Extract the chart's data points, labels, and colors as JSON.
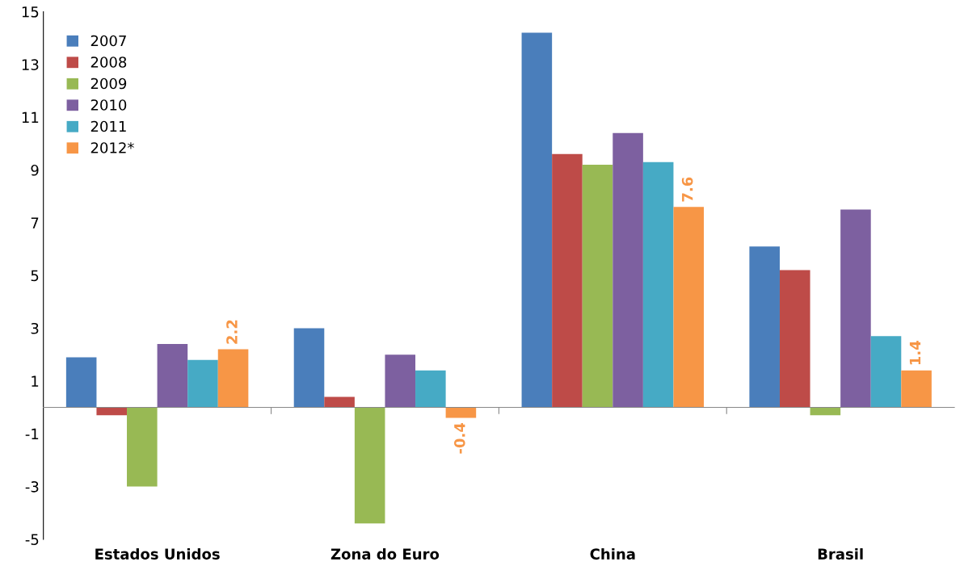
{
  "chart_data": {
    "type": "bar",
    "categories": [
      "Estados Unidos",
      "Zona do Euro",
      "China",
      "Brasil"
    ],
    "series": [
      {
        "name": "2007",
        "color": "#4a7ebb",
        "values": [
          1.9,
          3.0,
          14.2,
          6.1
        ]
      },
      {
        "name": "2008",
        "color": "#be4b48",
        "values": [
          -0.3,
          0.4,
          9.6,
          5.2
        ]
      },
      {
        "name": "2009",
        "color": "#98b954",
        "values": [
          -3.0,
          -4.4,
          9.2,
          -0.3
        ]
      },
      {
        "name": "2010",
        "color": "#7d60a0",
        "values": [
          2.4,
          2.0,
          10.4,
          7.5
        ]
      },
      {
        "name": "2011",
        "color": "#46aac5",
        "values": [
          1.8,
          1.4,
          9.3,
          2.7
        ]
      },
      {
        "name": "2012*",
        "color": "#f79646",
        "values": [
          2.2,
          -0.4,
          7.6,
          1.4
        ],
        "value_labels": [
          "2.2",
          "-0.4",
          "7.6",
          "1.4"
        ]
      }
    ],
    "ylim": [
      -5,
      15
    ],
    "yticks": [
      -5,
      -3,
      -1,
      1,
      3,
      5,
      7,
      9,
      11,
      13,
      15
    ],
    "grid": false,
    "legend": "top left"
  }
}
